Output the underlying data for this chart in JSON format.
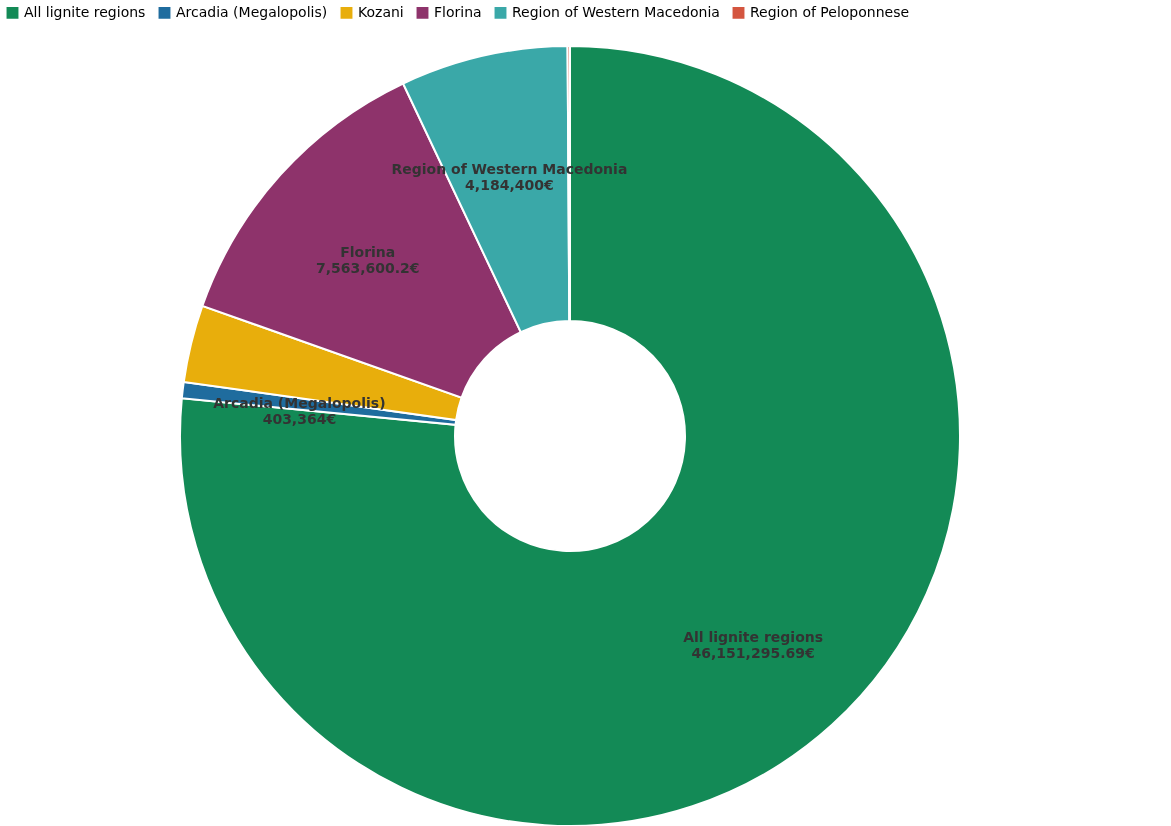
{
  "chart_data": {
    "type": "donut",
    "categories": [
      "All lignite regions",
      "Arcadia (Megalopolis)",
      "Kozani",
      "Florina",
      "Region of Western Macedonia",
      "Region of Peloponnese"
    ],
    "values": [
      46151295.69,
      403364,
      1930000,
      7563600.2,
      4184400,
      60000
    ],
    "colors": [
      "#138a56",
      "#1f6c9e",
      "#e8ae0c",
      "#8e336b",
      "#3aa8a8",
      "#d4553f"
    ],
    "value_labels": [
      "46,151,295.69€",
      "403,364€",
      null,
      "7,563,600.2€",
      "4,184,400€",
      null
    ],
    "legend": "top"
  }
}
